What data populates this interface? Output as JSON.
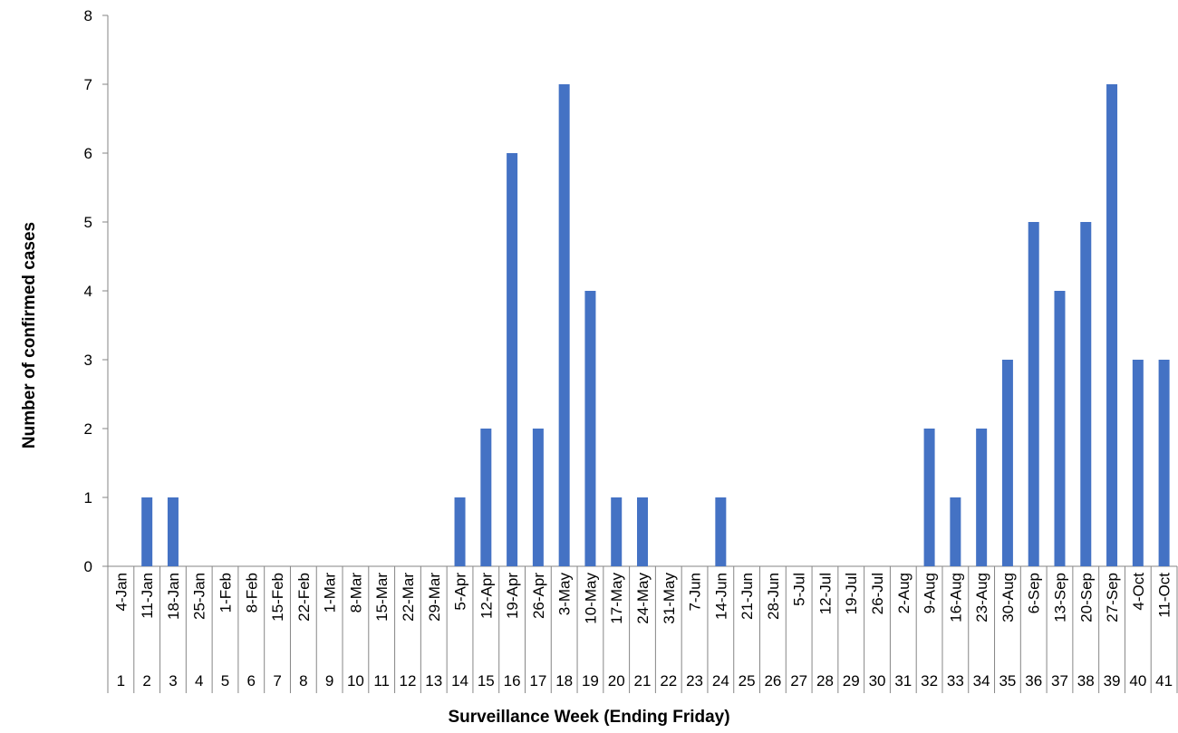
{
  "chart_data": {
    "type": "bar",
    "ylabel": "Number of confirmed cases",
    "xlabel": "Surveillance Week (Ending Friday)",
    "ylim": [
      0,
      8
    ],
    "yticks": [
      0,
      1,
      2,
      3,
      4,
      5,
      6,
      7,
      8
    ],
    "grid": false,
    "legend": "none",
    "color": "#4472C4",
    "categories": [
      "4-Jan",
      "11-Jan",
      "18-Jan",
      "25-Jan",
      "1-Feb",
      "8-Feb",
      "15-Feb",
      "22-Feb",
      "1-Mar",
      "8-Mar",
      "15-Mar",
      "22-Mar",
      "29-Mar",
      "5-Apr",
      "12-Apr",
      "19-Apr",
      "26-Apr",
      "3-May",
      "10-May",
      "17-May",
      "24-May",
      "31-May",
      "7-Jun",
      "14-Jun",
      "21-Jun",
      "28-Jun",
      "5-Jul",
      "12-Jul",
      "19-Jul",
      "26-Jul",
      "2-Aug",
      "9-Aug",
      "16-Aug",
      "23-Aug",
      "30-Aug",
      "6-Sep",
      "13-Sep",
      "20-Sep",
      "27-Sep",
      "4-Oct",
      "11-Oct"
    ],
    "weeks": [
      "1",
      "2",
      "3",
      "4",
      "5",
      "6",
      "7",
      "8",
      "9",
      "10",
      "11",
      "12",
      "13",
      "14",
      "15",
      "16",
      "17",
      "18",
      "19",
      "20",
      "21",
      "22",
      "23",
      "24",
      "25",
      "26",
      "27",
      "28",
      "29",
      "30",
      "31",
      "32",
      "33",
      "34",
      "35",
      "36",
      "37",
      "38",
      "39",
      "40",
      "41"
    ],
    "values": [
      0,
      1,
      1,
      0,
      0,
      0,
      0,
      0,
      0,
      0,
      0,
      0,
      0,
      1,
      2,
      6,
      2,
      7,
      4,
      1,
      1,
      0,
      0,
      1,
      0,
      0,
      0,
      0,
      0,
      0,
      0,
      2,
      1,
      2,
      3,
      5,
      4,
      5,
      7,
      3,
      3
    ]
  }
}
